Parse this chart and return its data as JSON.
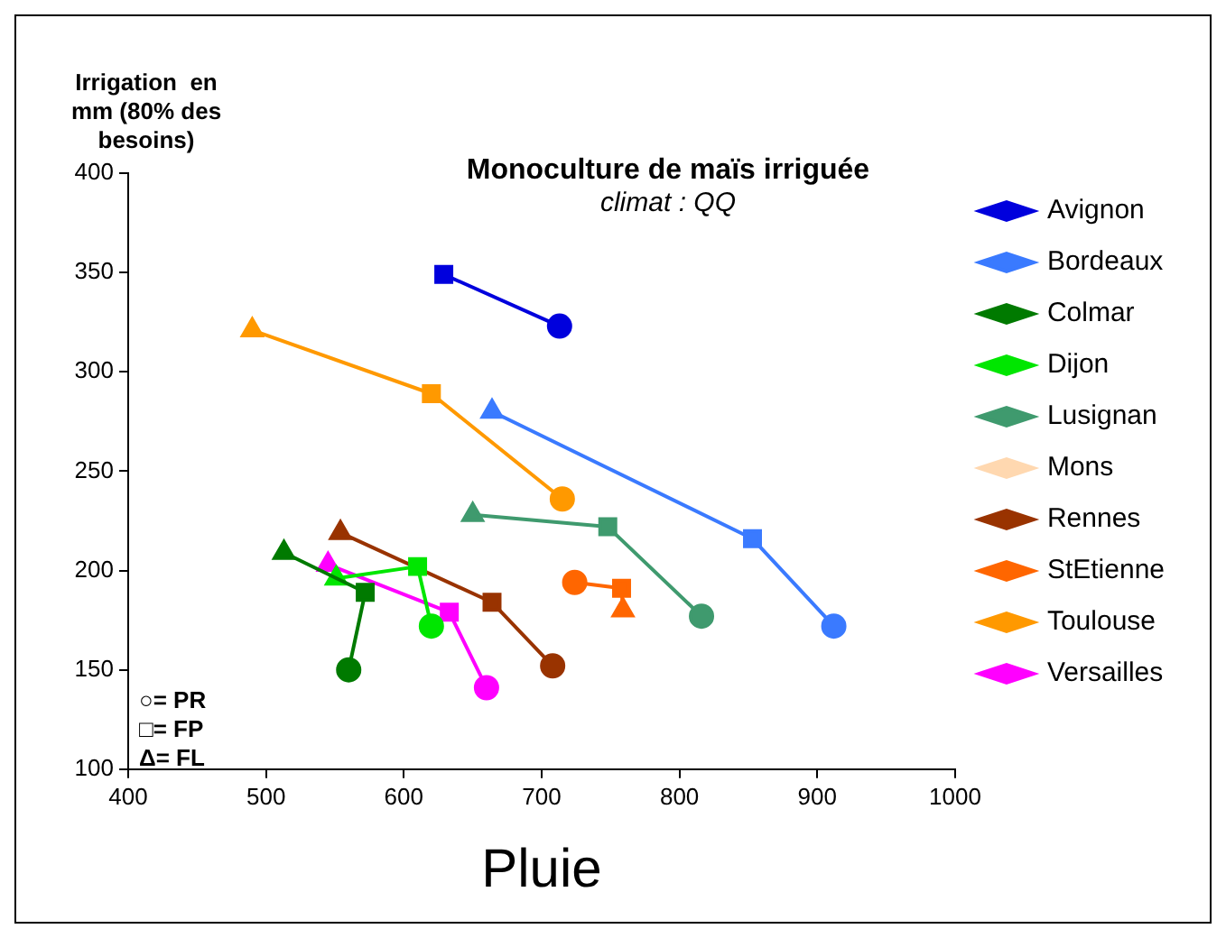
{
  "chart_data": {
    "type": "line",
    "title": "Monoculture de maïs irriguée",
    "subtitle": "climat : QQ",
    "xlabel": "Pluie",
    "ylabel": "Irrigation  en mm (80% des besoins)",
    "xlim": [
      400,
      1000
    ],
    "xticks": [
      400,
      500,
      600,
      700,
      800,
      900,
      1000
    ],
    "ylim": [
      100,
      400
    ],
    "yticks": [
      100,
      150,
      200,
      250,
      300,
      350,
      400
    ],
    "grid": false,
    "legend": "right",
    "marker": [
      "triangle",
      "square",
      "circle"
    ],
    "annotations": [
      "○= PR",
      "□= FP",
      "Δ= FL"
    ],
    "series": [
      {
        "name": "Avignon",
        "color": "#0000dd",
        "x": [
          null,
          629,
          713
        ],
        "values": [
          null,
          349,
          323
        ]
      },
      {
        "name": "Bordeaux",
        "color": "#3a7aff",
        "x": [
          664,
          853,
          912
        ],
        "values": [
          280,
          216,
          172
        ]
      },
      {
        "name": "Colmar",
        "color": "#007a00",
        "x": [
          513,
          572,
          560
        ],
        "values": [
          209,
          189,
          150
        ]
      },
      {
        "name": "Dijon",
        "color": "#00e600",
        "x": [
          551,
          610,
          620
        ],
        "values": [
          196,
          202,
          172
        ]
      },
      {
        "name": "Lusignan",
        "color": "#3f9a6e",
        "x": [
          650,
          748,
          816
        ],
        "values": [
          228,
          222,
          177
        ]
      },
      {
        "name": "Mons",
        "color": "#ffd8b0",
        "x": [
          null,
          null,
          null
        ],
        "values": [
          null,
          null,
          null
        ]
      },
      {
        "name": "Rennes",
        "color": "#993300",
        "x": [
          554,
          664,
          708
        ],
        "values": [
          219,
          184,
          152
        ]
      },
      {
        "name": "StEtienne",
        "color": "#ff6600",
        "x": [
          759,
          758,
          724
        ],
        "values": [
          180,
          191,
          194
        ]
      },
      {
        "name": "Toulouse",
        "color": "#ff9900",
        "x": [
          490,
          620,
          715
        ],
        "values": [
          321,
          289,
          236
        ]
      },
      {
        "name": "Versailles",
        "color": "#ff00ff",
        "x": [
          545,
          633,
          660
        ],
        "values": [
          203,
          179,
          141
        ]
      }
    ]
  }
}
